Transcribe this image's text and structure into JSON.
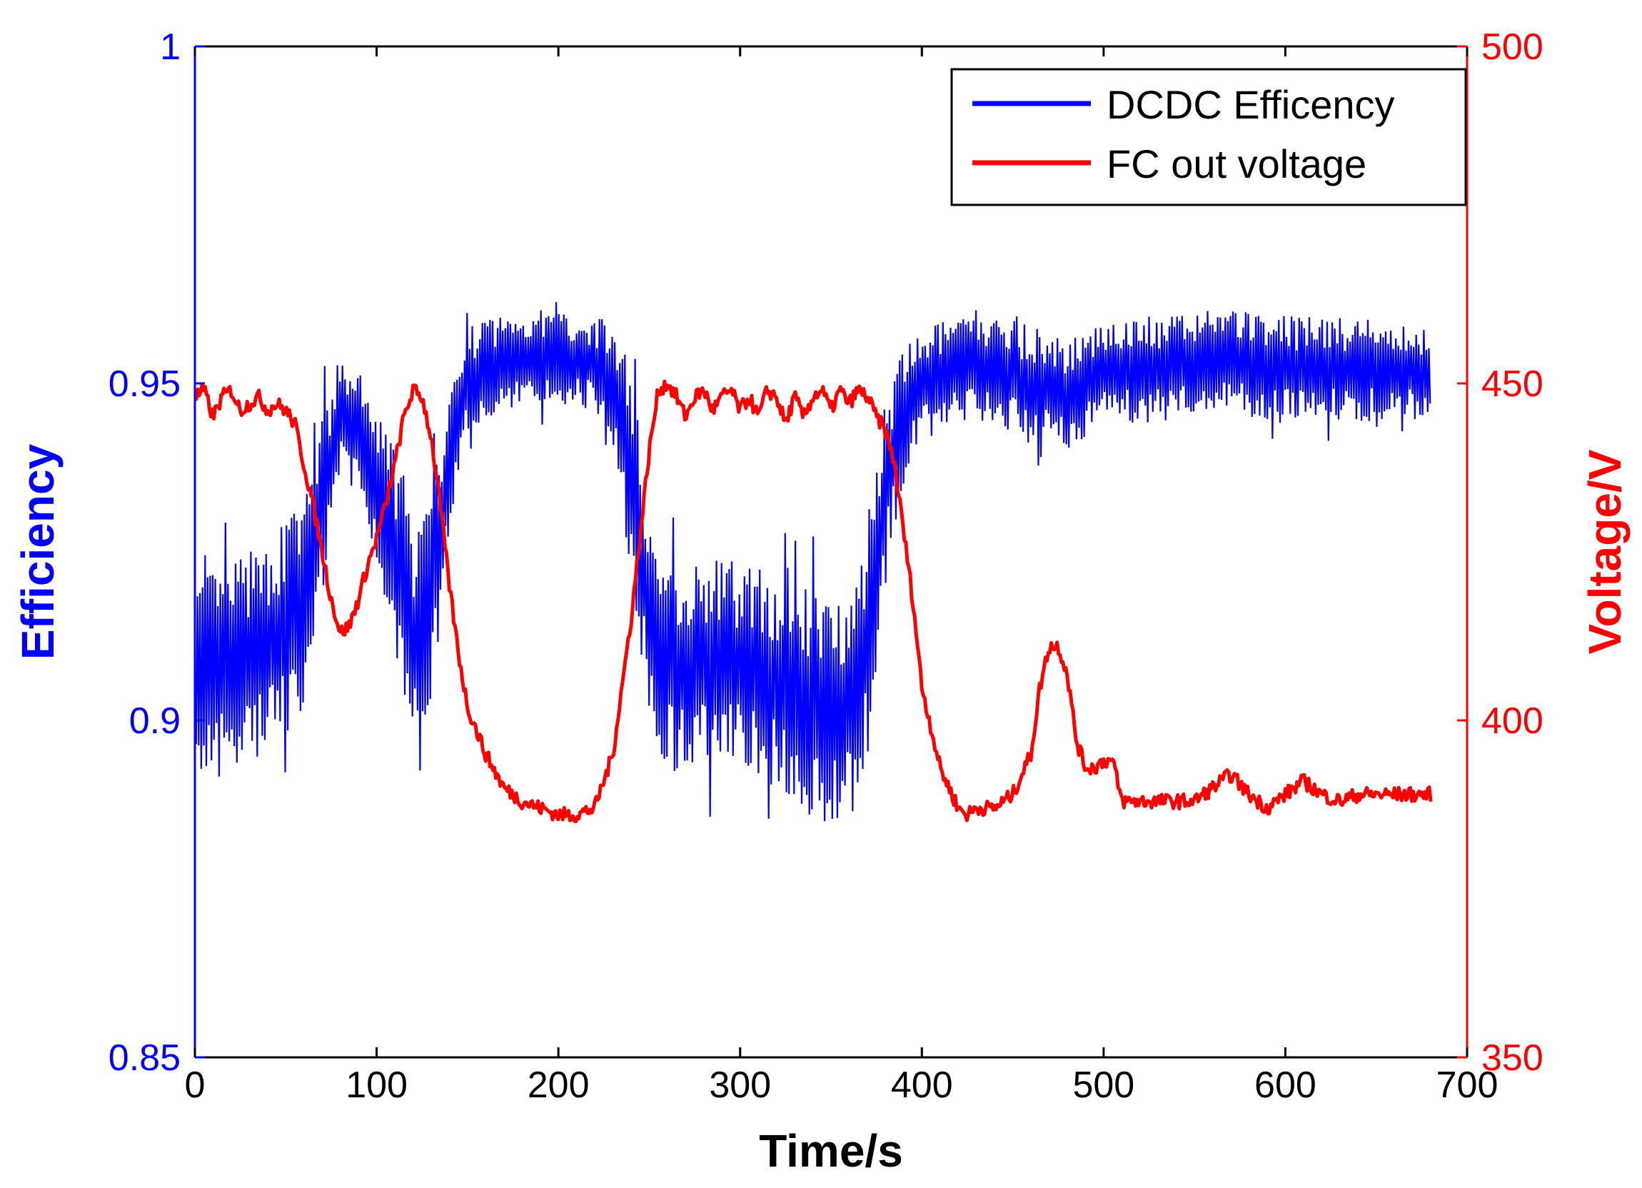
{
  "chart_data": {
    "type": "line",
    "title": "",
    "xlabel": "Time/s",
    "ylabel_left": "Efficiency",
    "ylabel_right": "Voltage/V",
    "xlim": [
      0,
      700
    ],
    "ylim_left": [
      0.85,
      1
    ],
    "ylim_right": [
      350,
      500
    ],
    "x_ticks": [
      0,
      100,
      200,
      300,
      400,
      500,
      600,
      700
    ],
    "y_left_ticks": [
      0.85,
      0.9,
      0.95,
      1
    ],
    "y_right_ticks": [
      350,
      400,
      450,
      500
    ],
    "x_tick_labels": [
      "0",
      "100",
      "200",
      "300",
      "400",
      "500",
      "600",
      "700"
    ],
    "y_left_tick_labels": [
      "0.85",
      "0.9",
      "0.95",
      "1"
    ],
    "y_right_tick_labels": [
      "350",
      "400",
      "450",
      "500"
    ],
    "grid": false,
    "legend_position": "top-right",
    "colors": {
      "left_axis": "#0000ff",
      "right_axis": "#ff0000"
    },
    "series": [
      {
        "name": "DCDC Efficency",
        "axis": "left",
        "color": "#0000ff",
        "x": [
          0,
          20,
          40,
          60,
          70,
          80,
          90,
          100,
          110,
          120,
          130,
          140,
          150,
          160,
          180,
          200,
          220,
          230,
          240,
          250,
          260,
          280,
          300,
          320,
          340,
          360,
          370,
          380,
          390,
          400,
          420,
          440,
          460,
          480,
          500,
          520,
          540,
          560,
          580,
          600,
          620,
          640,
          660,
          680
        ],
        "center": [
          0.905,
          0.908,
          0.91,
          0.918,
          0.932,
          0.945,
          0.943,
          0.935,
          0.925,
          0.912,
          0.918,
          0.938,
          0.95,
          0.952,
          0.954,
          0.954,
          0.953,
          0.95,
          0.938,
          0.915,
          0.908,
          0.908,
          0.908,
          0.906,
          0.902,
          0.902,
          0.912,
          0.935,
          0.945,
          0.95,
          0.952,
          0.952,
          0.95,
          0.948,
          0.952,
          0.952,
          0.952,
          0.954,
          0.953,
          0.952,
          0.952,
          0.952,
          0.952,
          0.951
        ],
        "spread": [
          0.016,
          0.016,
          0.016,
          0.016,
          0.014,
          0.009,
          0.009,
          0.011,
          0.016,
          0.016,
          0.016,
          0.011,
          0.008,
          0.008,
          0.007,
          0.007,
          0.007,
          0.009,
          0.016,
          0.016,
          0.016,
          0.016,
          0.016,
          0.016,
          0.018,
          0.018,
          0.018,
          0.013,
          0.01,
          0.008,
          0.008,
          0.008,
          0.009,
          0.008,
          0.008,
          0.008,
          0.008,
          0.008,
          0.008,
          0.008,
          0.008,
          0.008,
          0.007,
          0.007
        ]
      },
      {
        "name": "FC out voltage",
        "axis": "right",
        "color": "#ff0000",
        "x": [
          0,
          5,
          10,
          15,
          20,
          25,
          30,
          35,
          40,
          45,
          50,
          55,
          60,
          65,
          70,
          75,
          80,
          85,
          90,
          95,
          100,
          105,
          110,
          115,
          120,
          125,
          130,
          135,
          140,
          145,
          150,
          160,
          170,
          180,
          190,
          200,
          210,
          220,
          230,
          240,
          250,
          255,
          260,
          265,
          270,
          275,
          280,
          285,
          290,
          295,
          300,
          305,
          310,
          315,
          320,
          325,
          330,
          335,
          340,
          345,
          350,
          355,
          360,
          365,
          370,
          375,
          380,
          385,
          390,
          395,
          400,
          410,
          420,
          425,
          430,
          440,
          450,
          460,
          465,
          470,
          475,
          480,
          485,
          490,
          495,
          500,
          505,
          510,
          515,
          520,
          530,
          540,
          550,
          560,
          570,
          580,
          590,
          600,
          610,
          620,
          630,
          640,
          650,
          660,
          670,
          680
        ],
        "y": [
          448,
          449,
          445,
          448,
          449,
          446,
          447,
          448,
          446,
          447,
          446,
          444,
          438,
          432,
          425,
          418,
          413,
          414,
          418,
          423,
          427,
          432,
          438,
          445,
          449,
          448,
          442,
          432,
          420,
          410,
          402,
          395,
          390,
          388,
          387,
          386,
          386,
          387,
          395,
          415,
          440,
          449,
          450,
          448,
          445,
          448,
          449,
          446,
          448,
          449,
          446,
          448,
          445,
          449,
          448,
          444,
          448,
          445,
          448,
          449,
          446,
          449,
          447,
          449,
          448,
          445,
          443,
          438,
          428,
          418,
          405,
          393,
          387,
          386,
          387,
          387,
          389,
          395,
          405,
          411,
          411,
          407,
          397,
          393,
          393,
          394,
          394,
          388,
          388,
          388,
          388,
          388,
          388,
          390,
          392,
          389,
          387,
          389,
          391,
          389,
          388,
          389,
          389,
          389,
          389,
          389
        ]
      }
    ]
  }
}
